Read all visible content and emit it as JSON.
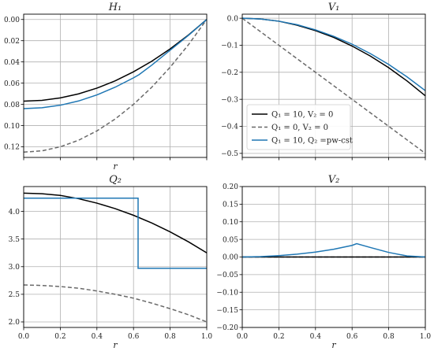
{
  "chart_data": [
    {
      "id": "H1",
      "type": "line",
      "title": "H₁",
      "xlabel": "r",
      "ylabel": "",
      "xlim": [
        0,
        1
      ],
      "ylim": [
        0.13,
        -0.005
      ],
      "y_inverted": true,
      "grid": true,
      "x_ticks": [
        0.0,
        0.2,
        0.4,
        0.6,
        0.8,
        1.0
      ],
      "x_tick_labels": [
        "",
        "",
        "",
        "",
        "",
        ""
      ],
      "y_ticks": [
        0.0,
        0.02,
        0.04,
        0.06,
        0.08,
        0.1,
        0.12
      ],
      "y_tick_labels": [
        "0.00",
        "0.02",
        "0.04",
        "0.06",
        "0.08",
        "0.10",
        "0.12"
      ],
      "series": [
        {
          "key": "a",
          "color": "#000000",
          "dash": "",
          "x": [
            0,
            0.1,
            0.2,
            0.3,
            0.4,
            0.5,
            0.6,
            0.7,
            0.8,
            0.9,
            1.0
          ],
          "y": [
            0.077,
            0.0762,
            0.0739,
            0.0701,
            0.0647,
            0.0578,
            0.0493,
            0.0393,
            0.0277,
            0.0146,
            0.0
          ]
        },
        {
          "key": "b",
          "color": "#696969",
          "dash": "5,3",
          "x": [
            0,
            0.1,
            0.2,
            0.3,
            0.4,
            0.5,
            0.6,
            0.7,
            0.8,
            0.9,
            1.0
          ],
          "y": [
            0.125,
            0.1238,
            0.12,
            0.1138,
            0.105,
            0.0938,
            0.08,
            0.0638,
            0.045,
            0.0238,
            0.0
          ]
        },
        {
          "key": "c",
          "color": "#1f77b4",
          "dash": "",
          "x": [
            0,
            0.1,
            0.2,
            0.3,
            0.4,
            0.5,
            0.6,
            0.63,
            0.7,
            0.8,
            0.9,
            1.0
          ],
          "y": [
            0.084,
            0.0832,
            0.0808,
            0.0768,
            0.0711,
            0.0638,
            0.055,
            0.052,
            0.043,
            0.029,
            0.015,
            0.0
          ]
        }
      ]
    },
    {
      "id": "V1",
      "type": "line",
      "title": "V₁",
      "xlabel": "",
      "ylabel": "",
      "xlim": [
        0,
        1
      ],
      "ylim": [
        -0.515,
        0.015
      ],
      "grid": true,
      "x_ticks": [
        0.0,
        0.2,
        0.4,
        0.6,
        0.8,
        1.0
      ],
      "x_tick_labels": [
        "",
        "",
        "",
        "",
        "",
        ""
      ],
      "y_ticks": [
        0.0,
        -0.1,
        -0.2,
        -0.3,
        -0.4,
        -0.5
      ],
      "y_tick_labels": [
        "0.0",
        "−0.1",
        "−0.2",
        "−0.3",
        "−0.4",
        "−0.5"
      ],
      "series": [
        {
          "key": "a",
          "color": "#000000",
          "dash": "",
          "x": [
            0,
            0.1,
            0.2,
            0.3,
            0.4,
            0.5,
            0.6,
            0.7,
            0.8,
            0.9,
            1.0
          ],
          "y": [
            0,
            -0.003,
            -0.011,
            -0.026,
            -0.046,
            -0.071,
            -0.103,
            -0.14,
            -0.183,
            -0.232,
            -0.287
          ]
        },
        {
          "key": "b",
          "color": "#696969",
          "dash": "5,3",
          "x": [
            0,
            1.0
          ],
          "y": [
            0,
            -0.5
          ]
        },
        {
          "key": "c",
          "color": "#1f77b4",
          "dash": "",
          "x": [
            0,
            0.1,
            0.2,
            0.3,
            0.4,
            0.5,
            0.6,
            0.7,
            0.8,
            0.9,
            1.0
          ],
          "y": [
            0,
            -0.003,
            -0.011,
            -0.024,
            -0.043,
            -0.067,
            -0.096,
            -0.131,
            -0.171,
            -0.217,
            -0.268
          ]
        }
      ],
      "legend": {
        "placement": "lower-left",
        "entries": [
          {
            "key": "a",
            "label": "Q₁ = 10, V₂ = 0"
          },
          {
            "key": "b",
            "label": "Q₁ = 0, V₂ = 0"
          },
          {
            "key": "c",
            "label": "Q₁ = 10, Q₂ =pw-cst"
          }
        ]
      }
    },
    {
      "id": "Q2",
      "type": "line",
      "title": "Q₂",
      "xlabel": "r",
      "ylabel": "",
      "xlim": [
        0,
        1
      ],
      "ylim": [
        1.9,
        4.45
      ],
      "grid": true,
      "x_ticks": [
        0.0,
        0.2,
        0.4,
        0.6,
        0.8,
        1.0
      ],
      "x_tick_labels": [
        "0.0",
        "0.2",
        "0.4",
        "0.6",
        "0.8",
        "1.0"
      ],
      "y_ticks": [
        2.0,
        2.5,
        3.0,
        3.5,
        4.0
      ],
      "y_tick_labels": [
        "2.0",
        "2.5",
        "3.0",
        "3.5",
        "4.0"
      ],
      "series": [
        {
          "key": "a",
          "color": "#000000",
          "dash": "",
          "x": [
            0,
            0.1,
            0.2,
            0.3,
            0.4,
            0.5,
            0.6,
            0.7,
            0.8,
            0.9,
            1.0
          ],
          "y": [
            4.33,
            4.32,
            4.29,
            4.23,
            4.15,
            4.05,
            3.93,
            3.79,
            3.63,
            3.45,
            3.25
          ]
        },
        {
          "key": "b",
          "color": "#696969",
          "dash": "5,3",
          "x": [
            0,
            0.1,
            0.2,
            0.3,
            0.4,
            0.5,
            0.6,
            0.7,
            0.8,
            0.9,
            1.0
          ],
          "y": [
            2.67,
            2.66,
            2.64,
            2.61,
            2.56,
            2.5,
            2.43,
            2.34,
            2.24,
            2.13,
            2.0
          ]
        },
        {
          "key": "c",
          "color": "#1f77b4",
          "dash": "",
          "x": [
            0,
            0.625,
            0.625,
            1.0
          ],
          "y": [
            4.24,
            4.24,
            2.97,
            2.97
          ]
        }
      ]
    },
    {
      "id": "V2",
      "type": "line",
      "title": "V₂",
      "xlabel": "r",
      "ylabel": "",
      "xlim": [
        0,
        1
      ],
      "ylim": [
        -0.2,
        0.2
      ],
      "grid": true,
      "x_ticks": [
        0.0,
        0.2,
        0.4,
        0.6,
        0.8,
        1.0
      ],
      "x_tick_labels": [
        "0.0",
        "0.2",
        "0.4",
        "0.6",
        "0.8",
        "1.0"
      ],
      "y_ticks": [
        0.2,
        0.15,
        0.1,
        0.05,
        0.0,
        -0.05,
        -0.1,
        -0.15,
        -0.2
      ],
      "y_tick_labels": [
        "0.20",
        "0.15",
        "0.10",
        "0.05",
        "0.00",
        "−0.05",
        "−0.10",
        "−0.15",
        "−0.20"
      ],
      "series": [
        {
          "key": "a",
          "color": "#000000",
          "dash": "",
          "x": [
            0,
            1.0
          ],
          "y": [
            0,
            0
          ]
        },
        {
          "key": "b",
          "color": "#696969",
          "dash": "5,3",
          "x": [
            0,
            1.0
          ],
          "y": [
            0,
            0
          ]
        },
        {
          "key": "c",
          "color": "#1f77b4",
          "dash": "",
          "x": [
            0,
            0.1,
            0.2,
            0.3,
            0.4,
            0.5,
            0.6,
            0.625,
            0.7,
            0.8,
            0.9,
            1.0
          ],
          "y": [
            0,
            0.001,
            0.004,
            0.008,
            0.014,
            0.022,
            0.033,
            0.038,
            0.027,
            0.013,
            0.003,
            0.0
          ]
        }
      ]
    }
  ]
}
